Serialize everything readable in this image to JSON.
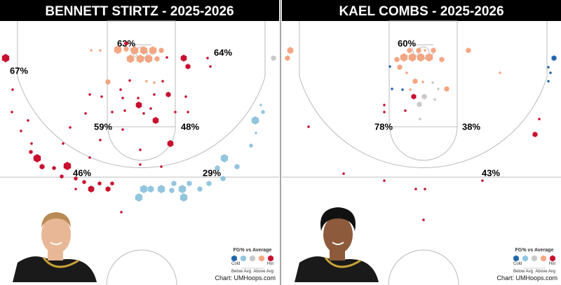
{
  "panels": [
    {
      "title": "BENNETT STIRTZ - 2025-2026",
      "zones": [
        "63%",
        "64%",
        "67%",
        "59%",
        "48%",
        "46%",
        "29%"
      ],
      "legend": {
        "title": "FG% vs Average",
        "cold": "Cold",
        "hot": "Hot",
        "below": "Below Avg",
        "above": "Above Avg"
      },
      "credit": "Chart: UMHoops.com"
    },
    {
      "title": "KAEL COMBS - 2025-2026",
      "zones": [
        "60%",
        "78%",
        "38%",
        "43%"
      ],
      "legend": {
        "title": "FG% vs Average",
        "cold": "Cold",
        "hot": "Hot",
        "below": "Below Avg",
        "above": "Above Avg"
      },
      "credit": "Chart: UMHoops.com"
    }
  ]
}
